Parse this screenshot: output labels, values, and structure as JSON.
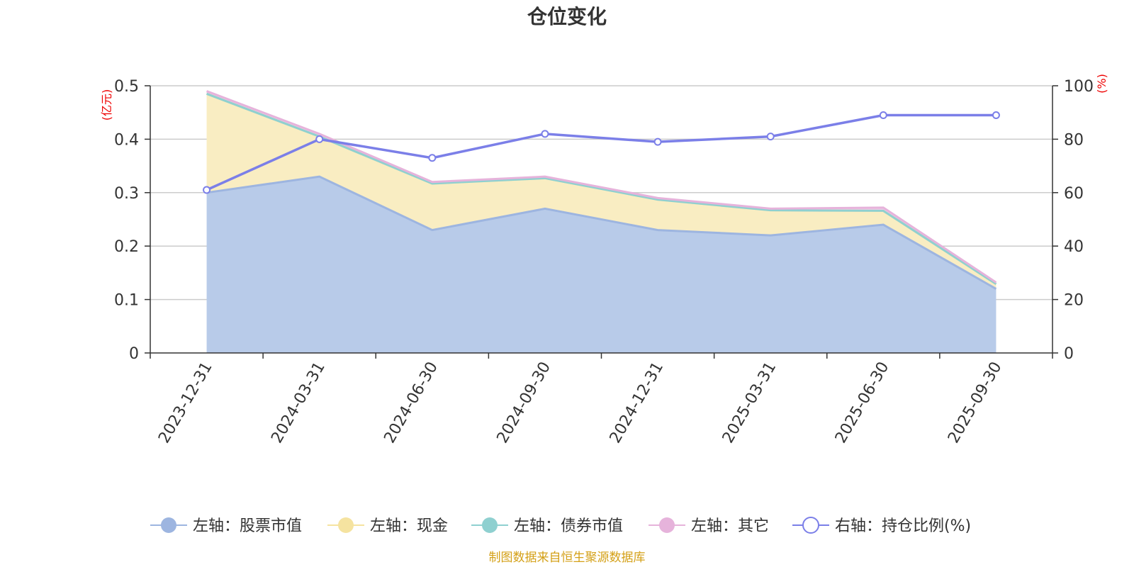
{
  "chart_data": {
    "type": "area",
    "title": "仓位变化",
    "categories": [
      "2023-12-31",
      "2024-03-31",
      "2024-06-30",
      "2024-09-30",
      "2024-12-31",
      "2025-03-31",
      "2025-06-30",
      "2025-09-30"
    ],
    "left_axis": {
      "unit": "(亿元)",
      "ylim": [
        0,
        0.5
      ],
      "ticks": [
        "0",
        "0.1",
        "0.2",
        "0.3",
        "0.4",
        "0.5"
      ]
    },
    "right_axis": {
      "unit": "(%)",
      "ylim": [
        0,
        100
      ],
      "ticks": [
        "0",
        "20",
        "40",
        "60",
        "80",
        "100"
      ]
    },
    "series": [
      {
        "name": "左轴：股票市值",
        "axis": "left",
        "stack": true,
        "color": "#9db5e0",
        "fill": "#b8cbe9",
        "values": [
          0.3,
          0.33,
          0.23,
          0.27,
          0.23,
          0.22,
          0.24,
          0.12
        ]
      },
      {
        "name": "左轴：现金",
        "axis": "left",
        "stack": true,
        "color": "#f5e3a0",
        "fill": "#f9edc2",
        "values": [
          0.185,
          0.075,
          0.087,
          0.057,
          0.057,
          0.047,
          0.026,
          0.009
        ]
      },
      {
        "name": "左轴：债券市值",
        "axis": "left",
        "stack": true,
        "color": "#8fd0d0",
        "fill": "#b7e2e2",
        "values": [
          0,
          0,
          0,
          0,
          0,
          0,
          0,
          0
        ]
      },
      {
        "name": "左轴：其它",
        "axis": "left",
        "stack": true,
        "color": "#e6b3db",
        "fill": "#efcbe7",
        "values": [
          0.005,
          0.005,
          0.003,
          0.003,
          0.003,
          0.003,
          0.006,
          0.003
        ]
      },
      {
        "name": "右轴：持仓比例(%)",
        "axis": "right",
        "stack": false,
        "color": "#7b7fe8",
        "values": [
          61,
          80,
          73,
          82,
          79,
          81,
          89,
          89
        ]
      }
    ],
    "grid": true,
    "legend_position": "bottom"
  },
  "footer": "制图数据来自恒生聚源数据库"
}
